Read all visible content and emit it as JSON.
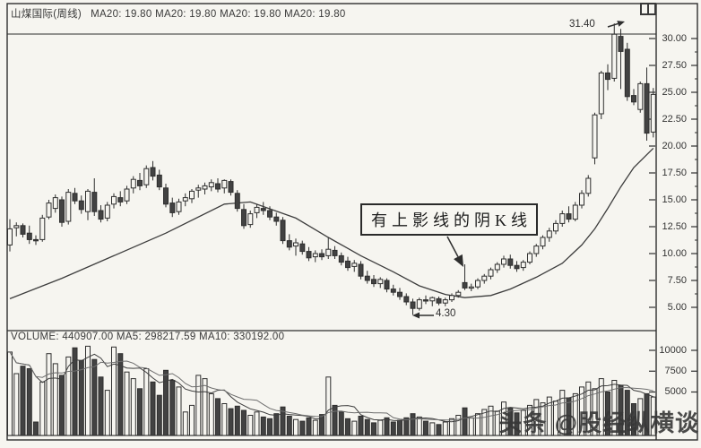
{
  "window": {
    "title_stock": "山煤国际(周线)",
    "title_indicators": "MA20: 19.80  MA20: 19.80  MA20: 19.80  MA20: 19.80",
    "icons": {
      "split_window": "two-pane-split"
    }
  },
  "colors": {
    "paper": "#f6f5f0",
    "ink": "#2e2e2e",
    "down_fill": "#424242",
    "ma_line": "#3d3d3d",
    "watermark": "#383838"
  },
  "price_pane": {
    "tick_labels": [
      "30.00",
      "27.50",
      "25.00",
      "22.50",
      "20.00",
      "17.50",
      "15.00",
      "12.50",
      "10.00",
      "7.50",
      "5.00"
    ]
  },
  "volume_pane": {
    "header": "VOLUME: 440907.00  MA5: 298217.59  MA10: 330192.00",
    "tick_labels": [
      "10000",
      "7500",
      "5000"
    ]
  },
  "annotations": {
    "callout": "有上影线的阴K线",
    "peak_price": "31.40",
    "low_price": "4.30"
  },
  "watermark": "头条 @股经纵横谈",
  "chart_data": {
    "type": "candlestick",
    "symbol": "山煤国际",
    "timeframe": "周线",
    "title": "山煤国际(周线)",
    "legend": [
      "MA20"
    ],
    "price_axis_ticks": [
      30,
      27.5,
      25,
      22.5,
      20,
      17.5,
      15,
      12.5,
      10,
      7.5,
      5
    ],
    "price_axis_range": [
      4,
      32
    ],
    "volume_axis_ticks": [
      10000,
      7500,
      5000
    ],
    "indicators": {
      "MA20": 19.8,
      "VOLUME": 440907.0,
      "MA5": 298217.59,
      "MA10": 330192.0
    },
    "peak": 31.4,
    "low": 4.3,
    "annotated_candle_index": 70,
    "candles": [
      [
        10.8,
        13.2,
        10.2,
        12.3
      ],
      [
        12.4,
        12.9,
        11.6,
        12.6
      ],
      [
        12.6,
        12.8,
        11.5,
        11.8
      ],
      [
        11.9,
        12.6,
        10.9,
        11.3
      ],
      [
        11.3,
        11.7,
        10.8,
        11.2
      ],
      [
        11.3,
        13.6,
        11.1,
        13.3
      ],
      [
        13.4,
        15.0,
        13.2,
        14.7
      ],
      [
        14.2,
        15.5,
        13.8,
        15.2
      ],
      [
        15.0,
        15.3,
        12.5,
        12.9
      ],
      [
        13.0,
        16.0,
        12.7,
        15.7
      ],
      [
        15.6,
        16.1,
        14.6,
        14.9
      ],
      [
        14.9,
        15.4,
        13.7,
        14.1
      ],
      [
        13.9,
        16.0,
        13.1,
        15.8
      ],
      [
        15.7,
        17.0,
        13.5,
        13.9
      ],
      [
        14.0,
        14.5,
        12.9,
        13.2
      ],
      [
        13.3,
        14.8,
        13.0,
        14.5
      ],
      [
        14.6,
        15.6,
        14.2,
        15.3
      ],
      [
        15.2,
        15.8,
        14.4,
        14.8
      ],
      [
        14.9,
        16.3,
        14.6,
        16.0
      ],
      [
        16.1,
        17.2,
        15.6,
        16.9
      ],
      [
        16.8,
        17.5,
        15.9,
        16.3
      ],
      [
        16.4,
        18.2,
        16.1,
        17.9
      ],
      [
        18.0,
        18.6,
        16.8,
        17.2
      ],
      [
        17.3,
        17.8,
        15.9,
        16.2
      ],
      [
        16.1,
        16.5,
        14.3,
        14.6
      ],
      [
        14.7,
        15.2,
        13.4,
        13.8
      ],
      [
        13.9,
        15.1,
        13.6,
        14.8
      ],
      [
        14.9,
        15.6,
        14.4,
        15.2
      ],
      [
        15.1,
        16.0,
        14.7,
        15.8
      ],
      [
        15.9,
        16.4,
        15.2,
        16.1
      ],
      [
        16.0,
        16.6,
        15.5,
        16.3
      ],
      [
        16.2,
        16.9,
        15.8,
        16.6
      ],
      [
        16.5,
        17.0,
        15.7,
        16.0
      ],
      [
        16.1,
        16.9,
        15.6,
        16.8
      ],
      [
        16.7,
        16.9,
        15.4,
        15.7
      ],
      [
        15.6,
        15.9,
        13.9,
        14.2
      ],
      [
        14.1,
        14.6,
        12.3,
        12.6
      ],
      [
        12.7,
        14.0,
        12.4,
        13.7
      ],
      [
        13.8,
        14.6,
        13.3,
        14.3
      ],
      [
        14.2,
        14.8,
        13.6,
        14.0
      ],
      [
        14.0,
        14.4,
        13.1,
        13.4
      ],
      [
        13.4,
        13.8,
        12.6,
        13.0
      ],
      [
        13.1,
        13.4,
        10.9,
        11.2
      ],
      [
        11.2,
        11.8,
        10.3,
        10.6
      ],
      [
        10.7,
        11.4,
        9.8,
        11.0
      ],
      [
        10.9,
        11.2,
        9.9,
        10.2
      ],
      [
        10.2,
        10.6,
        9.3,
        9.6
      ],
      [
        9.7,
        10.3,
        9.2,
        10.0
      ],
      [
        10.0,
        10.4,
        9.4,
        9.7
      ],
      [
        9.8,
        11.5,
        9.5,
        10.4
      ],
      [
        10.3,
        10.7,
        9.5,
        9.8
      ],
      [
        9.8,
        10.1,
        8.9,
        9.2
      ],
      [
        9.3,
        9.7,
        8.4,
        8.7
      ],
      [
        8.8,
        9.4,
        8.3,
        9.1
      ],
      [
        9.0,
        9.3,
        7.6,
        7.9
      ],
      [
        7.9,
        8.4,
        7.2,
        7.5
      ],
      [
        7.6,
        8.0,
        6.9,
        7.2
      ],
      [
        7.2,
        7.8,
        6.8,
        7.6
      ],
      [
        7.5,
        7.7,
        6.4,
        6.7
      ],
      [
        6.7,
        7.1,
        6.1,
        6.4
      ],
      [
        6.4,
        6.8,
        5.7,
        6.0
      ],
      [
        6.0,
        6.3,
        5.2,
        5.5
      ],
      [
        5.5,
        5.8,
        4.3,
        4.9
      ],
      [
        4.9,
        5.9,
        4.7,
        5.7
      ],
      [
        5.7,
        6.1,
        5.3,
        5.6
      ],
      [
        5.6,
        6.0,
        5.1,
        5.9
      ],
      [
        5.8,
        6.0,
        5.2,
        5.4
      ],
      [
        5.4,
        5.9,
        5.1,
        5.7
      ],
      [
        5.7,
        6.3,
        5.5,
        6.1
      ],
      [
        6.1,
        6.6,
        5.9,
        6.4
      ],
      [
        7.3,
        9.0,
        6.6,
        6.8
      ],
      [
        6.8,
        7.2,
        6.5,
        6.9
      ],
      [
        6.9,
        7.7,
        6.7,
        7.5
      ],
      [
        7.5,
        8.1,
        7.2,
        7.9
      ],
      [
        7.9,
        8.7,
        7.6,
        8.5
      ],
      [
        8.5,
        9.2,
        8.2,
        9.0
      ],
      [
        9.0,
        9.8,
        8.7,
        9.5
      ],
      [
        9.5,
        9.9,
        8.6,
        8.9
      ],
      [
        8.9,
        9.3,
        8.3,
        8.6
      ],
      [
        8.7,
        9.4,
        8.4,
        9.2
      ],
      [
        9.2,
        10.2,
        9.0,
        10.0
      ],
      [
        10.0,
        10.9,
        9.7,
        10.7
      ],
      [
        10.7,
        11.7,
        10.4,
        11.5
      ],
      [
        11.5,
        12.4,
        11.1,
        12.1
      ],
      [
        12.1,
        13.1,
        11.8,
        12.8
      ],
      [
        12.8,
        14.0,
        12.5,
        13.7
      ],
      [
        13.7,
        14.4,
        12.9,
        13.2
      ],
      [
        13.2,
        14.8,
        13.0,
        14.5
      ],
      [
        14.5,
        15.9,
        14.2,
        15.6
      ],
      [
        15.6,
        17.3,
        15.3,
        17.0
      ],
      [
        18.9,
        23.1,
        18.3,
        22.9
      ],
      [
        23.0,
        27.0,
        22.5,
        26.8
      ],
      [
        26.8,
        27.6,
        25.2,
        26.2
      ],
      [
        26.3,
        31.4,
        26.0,
        30.4
      ],
      [
        30.2,
        30.9,
        25.3,
        28.8
      ],
      [
        29.0,
        29.6,
        24.2,
        24.6
      ],
      [
        24.7,
        25.3,
        23.8,
        24.1
      ],
      [
        23.4,
        26.0,
        23.1,
        25.8
      ],
      [
        25.8,
        27.3,
        20.5,
        21.2
      ],
      [
        21.3,
        25.4,
        20.8,
        24.8
      ]
    ],
    "volumes": [
      9800,
      7200,
      8100,
      7800,
      1400,
      6200,
      9600,
      8400,
      7000,
      9200,
      10300,
      8800,
      10500,
      8900,
      6800,
      5200,
      10400,
      9600,
      7400,
      6600,
      5400,
      7800,
      6200,
      4600,
      7600,
      6400,
      5600,
      2600,
      3400,
      7000,
      6600,
      4800,
      4200,
      3600,
      3000,
      3300,
      2800,
      2200,
      2600,
      2000,
      1800,
      2400,
      3200,
      2100,
      1700,
      1500,
      1900,
      1600,
      2300,
      6800,
      3400,
      2600,
      1800,
      1500,
      2100,
      1700,
      1300,
      1600,
      1900,
      1400,
      1600,
      1900,
      2400,
      2000,
      1500,
      1300,
      1100,
      1400,
      1800,
      2200,
      3100,
      1900,
      2400,
      2900,
      3300,
      2700,
      3800,
      3100,
      2500,
      2800,
      3400,
      4100,
      3700,
      4400,
      3900,
      5200,
      4300,
      4800,
      5600,
      6200,
      5400,
      6600,
      5000,
      6400,
      5800,
      5200,
      3600,
      4200,
      4800,
      4400
    ],
    "ma20": [
      [
        0,
        5.8
      ],
      [
        8,
        7.7
      ],
      [
        16,
        9.8
      ],
      [
        24,
        11.9
      ],
      [
        33,
        14.6
      ],
      [
        37,
        14.8
      ],
      [
        44,
        13.3
      ],
      [
        49,
        11.5
      ],
      [
        54,
        9.8
      ],
      [
        59,
        8.3
      ],
      [
        63,
        7.0
      ],
      [
        67,
        6.2
      ],
      [
        70,
        5.9
      ],
      [
        74,
        6.1
      ],
      [
        77,
        6.7
      ],
      [
        81,
        7.8
      ],
      [
        85,
        9.1
      ],
      [
        88,
        10.8
      ],
      [
        90,
        12.3
      ],
      [
        92,
        14.2
      ],
      [
        94,
        16.2
      ],
      [
        96,
        18.0
      ],
      [
        99,
        19.8
      ]
    ]
  }
}
